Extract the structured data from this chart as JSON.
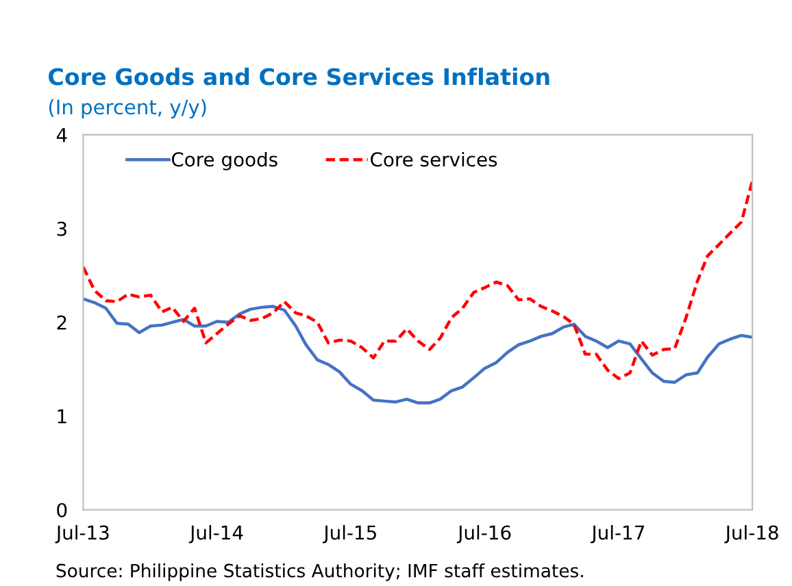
{
  "chart_data": {
    "type": "line",
    "title": "Core Goods and Core Services Inflation",
    "subtitle": "(In percent, y/y)",
    "x": [
      "2013-07",
      "2013-08",
      "2013-09",
      "2013-10",
      "2013-11",
      "2013-12",
      "2014-01",
      "2014-02",
      "2014-03",
      "2014-04",
      "2014-05",
      "2014-06",
      "2014-07",
      "2014-08",
      "2014-09",
      "2014-10",
      "2014-11",
      "2014-12",
      "2015-01",
      "2015-02",
      "2015-03",
      "2015-04",
      "2015-05",
      "2015-06",
      "2015-07",
      "2015-08",
      "2015-09",
      "2015-10",
      "2015-11",
      "2015-12",
      "2016-01",
      "2016-02",
      "2016-03",
      "2016-04",
      "2016-05",
      "2016-06",
      "2016-07",
      "2016-08",
      "2016-09",
      "2016-10",
      "2016-11",
      "2016-12",
      "2017-01",
      "2017-02",
      "2017-03",
      "2017-04",
      "2017-05",
      "2017-06",
      "2017-07",
      "2017-08",
      "2017-09",
      "2017-10",
      "2017-11",
      "2017-12",
      "2018-01",
      "2018-02",
      "2018-03",
      "2018-04",
      "2018-05",
      "2018-06",
      "2018-07"
    ],
    "series": [
      {
        "name": "Core goods",
        "color": "#4472c4",
        "line_style": "solid",
        "values": [
          2.25,
          2.21,
          2.15,
          1.99,
          1.98,
          1.89,
          1.96,
          1.97,
          2.0,
          2.03,
          1.96,
          1.96,
          2.01,
          2.0,
          2.09,
          2.14,
          2.16,
          2.17,
          2.13,
          1.96,
          1.76,
          1.6,
          1.55,
          1.47,
          1.34,
          1.27,
          1.17,
          1.16,
          1.15,
          1.18,
          1.14,
          1.14,
          1.18,
          1.27,
          1.31,
          1.41,
          1.51,
          1.57,
          1.68,
          1.76,
          1.8,
          1.85,
          1.88,
          1.95,
          1.98,
          1.85,
          1.8,
          1.73,
          1.8,
          1.77,
          1.61,
          1.46,
          1.37,
          1.36,
          1.44,
          1.46,
          1.63,
          1.77,
          1.82,
          1.86,
          1.84
        ]
      },
      {
        "name": "Core services",
        "color": "#ff0000",
        "line_style": "dashed",
        "values": [
          2.59,
          2.34,
          2.23,
          2.22,
          2.3,
          2.27,
          2.29,
          2.11,
          2.16,
          2.01,
          2.15,
          1.78,
          1.88,
          1.98,
          2.07,
          2.02,
          2.04,
          2.1,
          2.22,
          2.1,
          2.07,
          2.0,
          1.78,
          1.81,
          1.8,
          1.73,
          1.62,
          1.8,
          1.8,
          1.93,
          1.8,
          1.71,
          1.83,
          2.05,
          2.15,
          2.32,
          2.37,
          2.43,
          2.39,
          2.24,
          2.25,
          2.17,
          2.12,
          2.06,
          1.98,
          1.66,
          1.66,
          1.49,
          1.4,
          1.46,
          1.8,
          1.65,
          1.71,
          1.72,
          2.05,
          2.44,
          2.71,
          2.83,
          2.95,
          3.07,
          3.51
        ]
      }
    ],
    "xlim": [
      "2013-07",
      "2018-07"
    ],
    "xticks": [
      {
        "value": "2013-07",
        "label": "Jul-13"
      },
      {
        "value": "2014-07",
        "label": "Jul-14"
      },
      {
        "value": "2015-07",
        "label": "Jul-15"
      },
      {
        "value": "2016-07",
        "label": "Jul-16"
      },
      {
        "value": "2017-07",
        "label": "Jul-17"
      },
      {
        "value": "2018-07",
        "label": "Jul-18"
      }
    ],
    "ylim": [
      0,
      4
    ],
    "yticks": [
      0,
      1,
      2,
      3,
      4
    ],
    "grid": false,
    "legend": "top left",
    "annotations": [
      "Source: Philippine Statistics Authority; IMF staff estimates."
    ]
  }
}
